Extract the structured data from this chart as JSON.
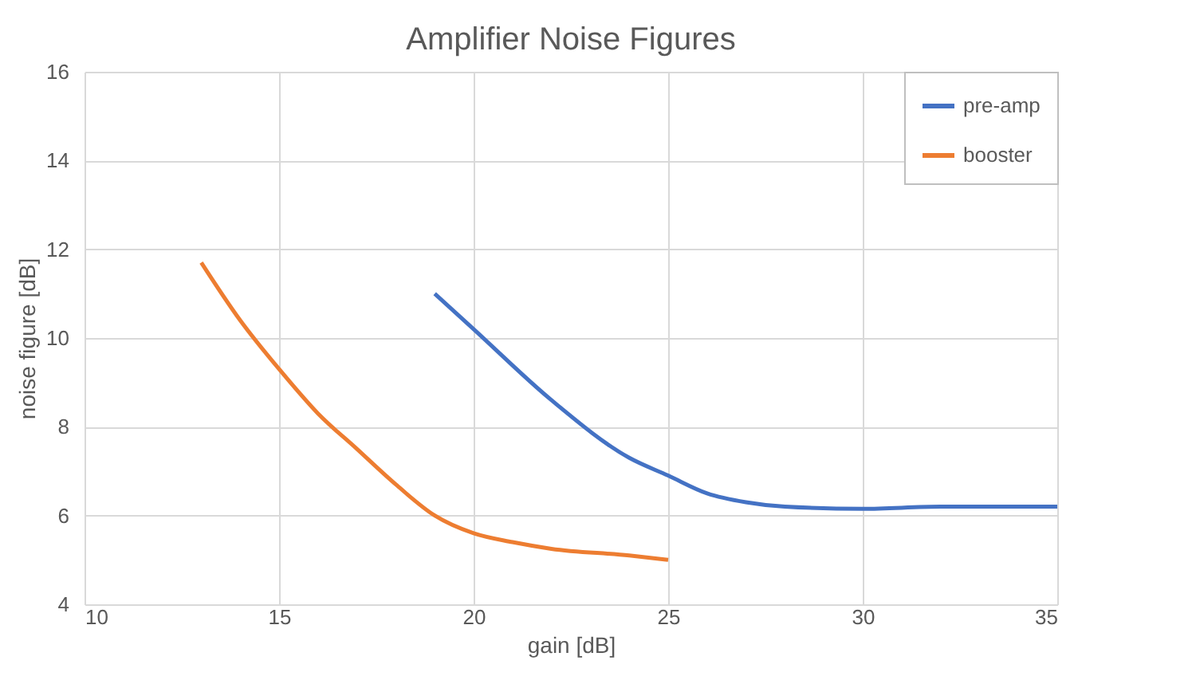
{
  "chart_data": {
    "type": "line",
    "title": "Amplifier Noise Figures",
    "xlabel": "gain [dB]",
    "ylabel": "noise figure [dB]",
    "xlim": [
      10,
      35
    ],
    "xticks": [
      10,
      15,
      20,
      25,
      30,
      35
    ],
    "ylim": [
      4,
      16
    ],
    "yticks": [
      4,
      6,
      8,
      10,
      12,
      14,
      16
    ],
    "grid": true,
    "legend": "top right",
    "marker": "none",
    "line_style": "solid",
    "series": [
      {
        "name": "pre-amp",
        "color": "#4472c4",
        "x": [
          19,
          20,
          22,
          24,
          25,
          26,
          27,
          28,
          30,
          32,
          35
        ],
        "values": [
          11,
          10.2,
          8.6,
          7.3,
          6.9,
          6.5,
          6.3,
          6.2,
          6.15,
          6.2,
          6.2
        ]
      },
      {
        "name": "booster",
        "color": "#ed7d31",
        "x": [
          13,
          14,
          15,
          16,
          17,
          18,
          19,
          20,
          21,
          22,
          24,
          25
        ],
        "values": [
          11.7,
          10.4,
          9.3,
          8.3,
          7.5,
          6.7,
          6.0,
          5.6,
          5.4,
          5.25,
          5.1,
          5.0
        ]
      }
    ]
  }
}
